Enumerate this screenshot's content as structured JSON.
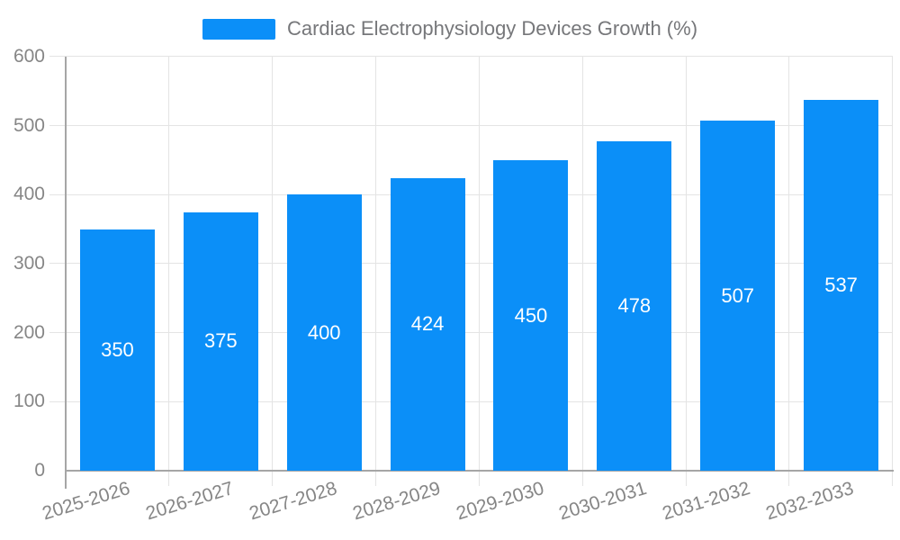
{
  "legend": {
    "label": "Cardiac Electrophysiology Devices Growth (%)"
  },
  "colors": {
    "bar": "#0b8ff8",
    "grid": "#e4e4e4",
    "axis": "#a6a6a6",
    "tick_label": "#868686",
    "legend_text": "#76777a",
    "value_label": "#ffffff"
  },
  "chart_data": {
    "type": "bar",
    "title": "Cardiac Electrophysiology Devices Growth (%)",
    "categories": [
      "2025-2026",
      "2026-2027",
      "2027-2028",
      "2028-2029",
      "2029-2030",
      "2030-2031",
      "2031-2032",
      "2032-2033"
    ],
    "values": [
      350,
      375,
      400,
      424,
      450,
      478,
      507,
      537
    ],
    "xlabel": "",
    "ylabel": "",
    "ylim": [
      0,
      600
    ],
    "yticks": [
      0,
      100,
      200,
      300,
      400,
      500,
      600
    ],
    "grid": true,
    "legend_position": "top-center",
    "value_labels": "inside-center",
    "bar_color": "#0b8ff8"
  }
}
